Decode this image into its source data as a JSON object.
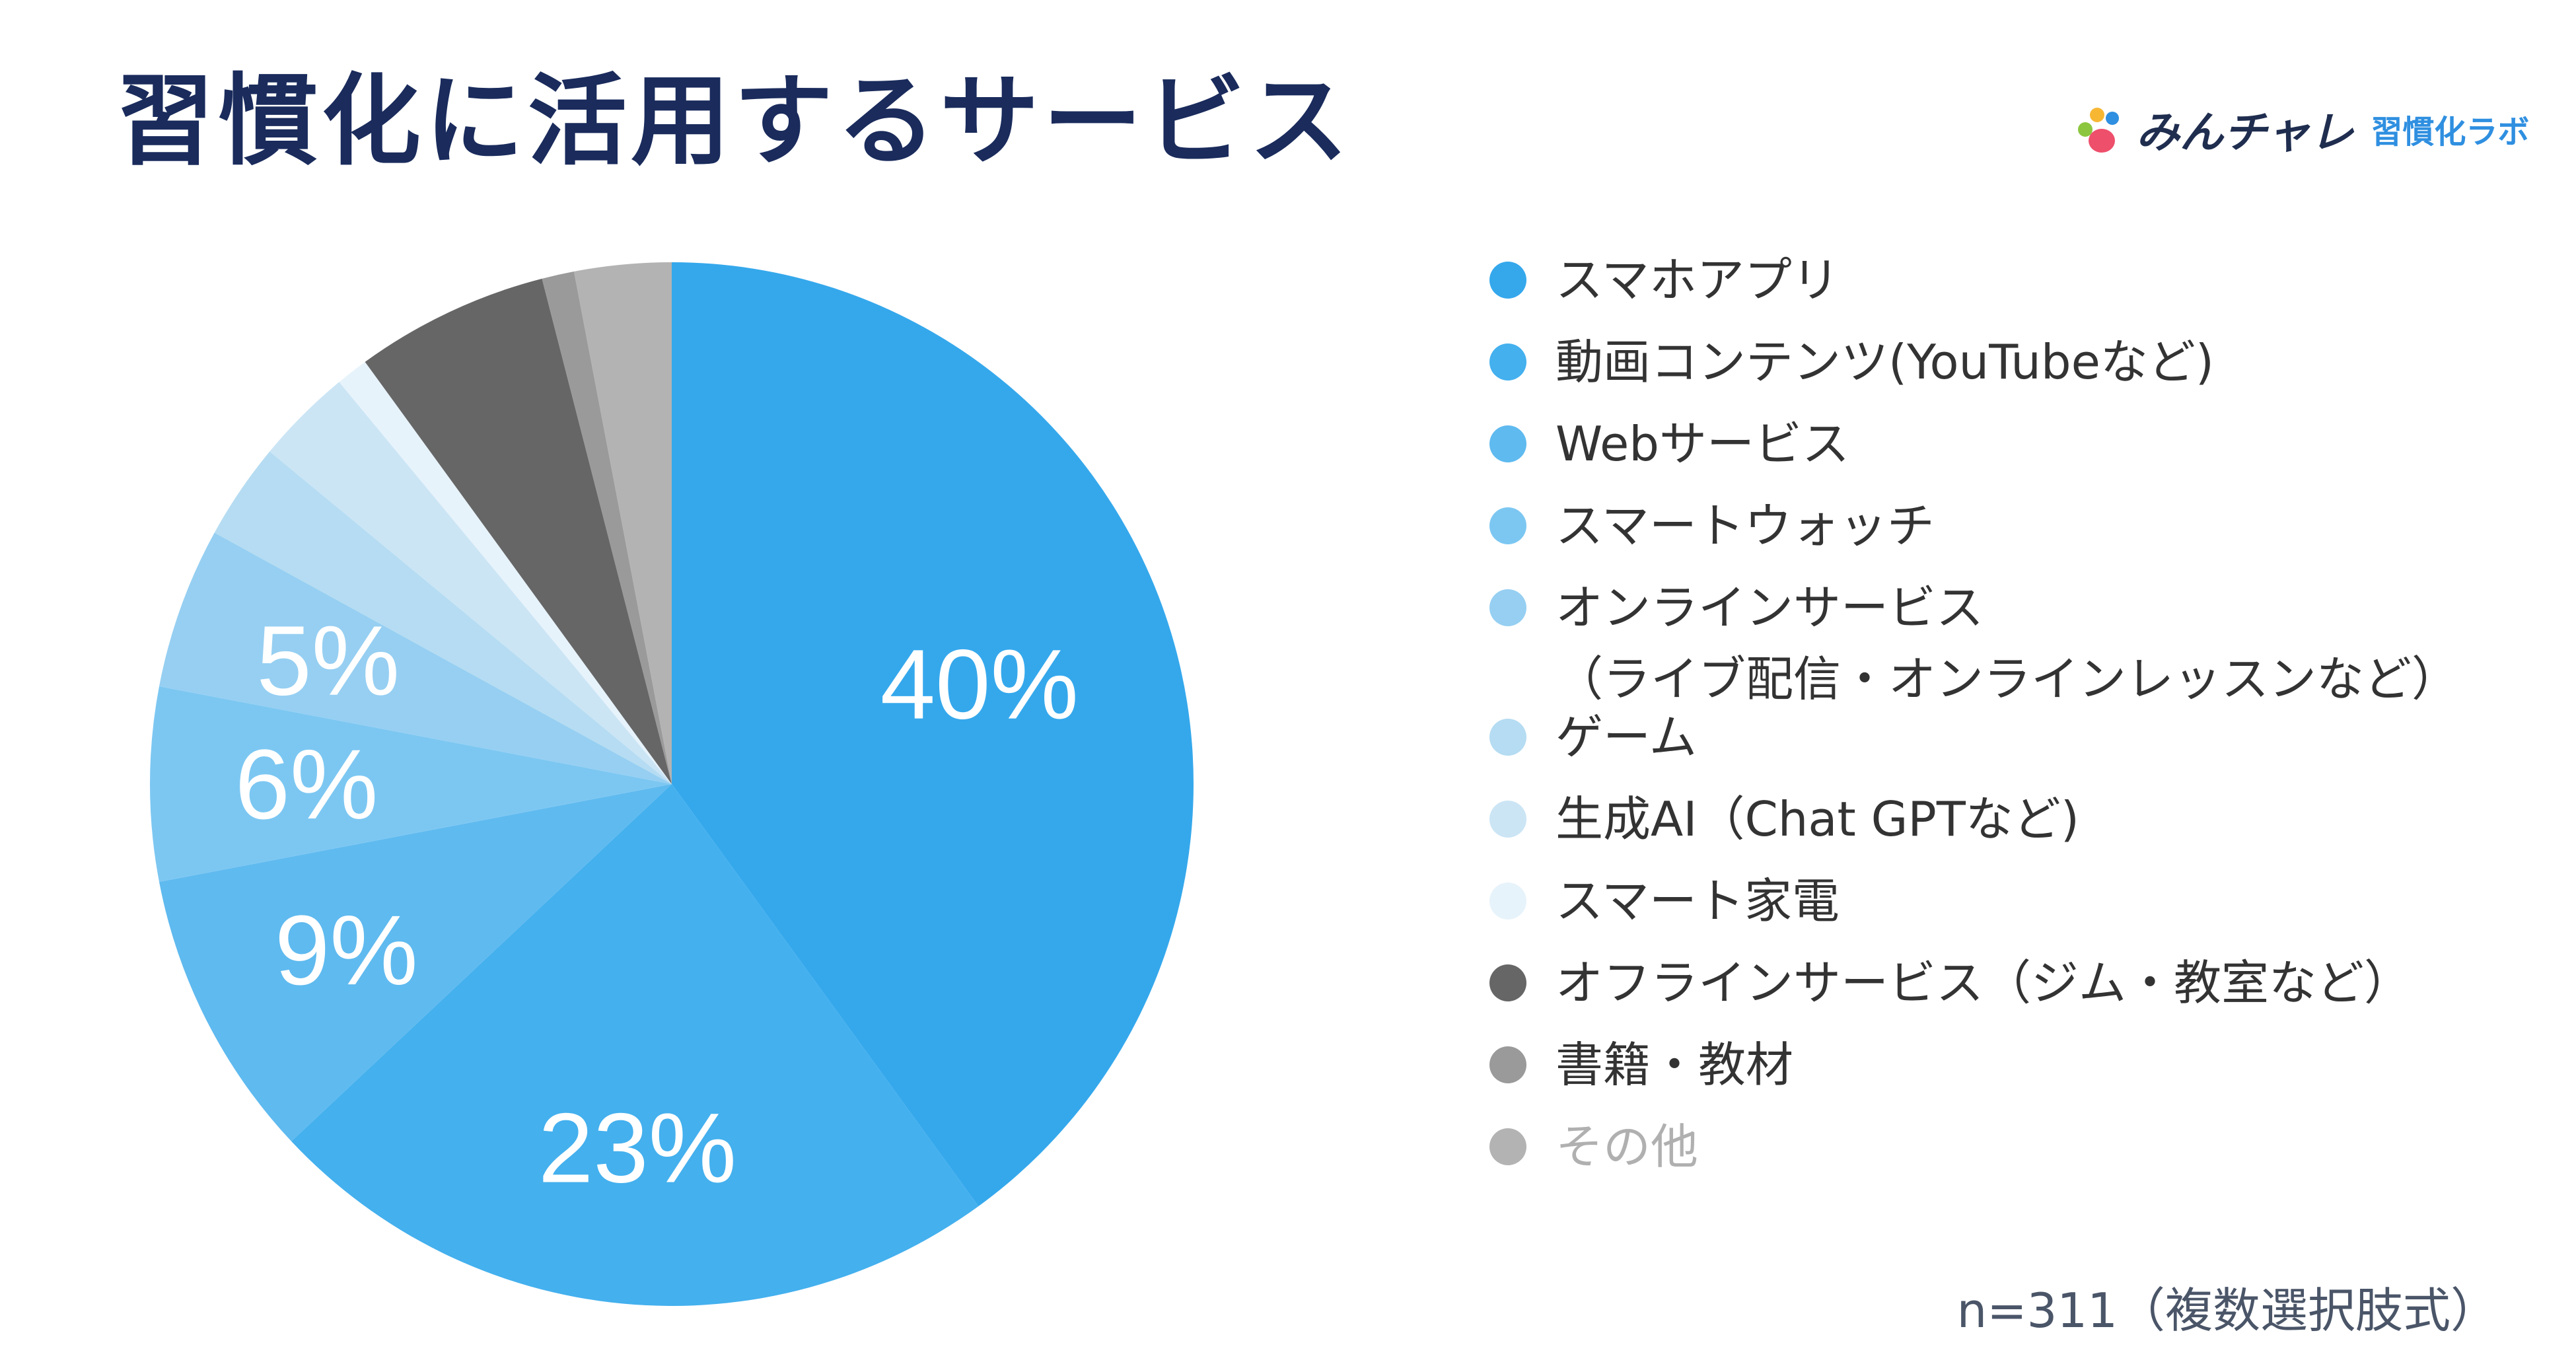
{
  "title": "習慣化に活用するサービス",
  "brand": {
    "name": "みんチャレ",
    "sub": "習慣化ラボ"
  },
  "note": "n=311（複数選択肢式）",
  "chart_data": {
    "type": "pie",
    "title": "習慣化に活用するサービス",
    "start": "top",
    "direction": "clockwise",
    "slices": [
      {
        "label": "スマホアプリ",
        "value": 40,
        "color": "#35a8ec",
        "shown_label": "40%"
      },
      {
        "label": "動画コンテンツ(YouTubeなど)",
        "value": 23,
        "color": "#44b0ee",
        "shown_label": "23%"
      },
      {
        "label": "Webサービス",
        "value": 9,
        "color": "#5fbaef",
        "shown_label": "9%"
      },
      {
        "label": "スマートウォッチ",
        "value": 6,
        "color": "#7cc7f2",
        "shown_label": "6%"
      },
      {
        "label": "オンラインサービス\n（ライブ配信・オンラインレッスンなど）",
        "value": 5,
        "color": "#96cff2",
        "shown_label": "5%"
      },
      {
        "label": "ゲーム",
        "value": 3,
        "color": "#b5dcf2",
        "shown_label": ""
      },
      {
        "label": "生成AI（Chat GPTなど)",
        "value": 3,
        "color": "#cbe5f5",
        "shown_label": ""
      },
      {
        "label": "スマート家電",
        "value": 1,
        "color": "#e7f3fb",
        "shown_label": ""
      },
      {
        "label": "オフラインサービス（ジム・教室など）",
        "value": 6,
        "color": "#666666",
        "shown_label": ""
      },
      {
        "label": "書籍・教材",
        "value": 1,
        "color": "#9a9a9a",
        "shown_label": ""
      },
      {
        "label": "その他",
        "value": 3,
        "color": "#b3b3b3",
        "shown_label": ""
      }
    ]
  }
}
